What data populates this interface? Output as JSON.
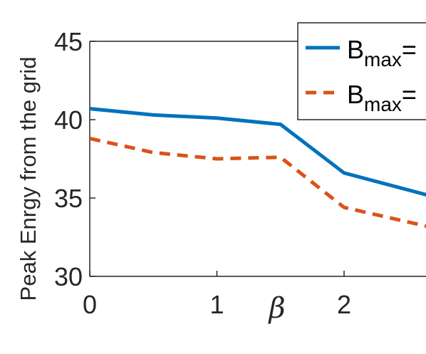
{
  "chart_data": {
    "type": "line",
    "title": "",
    "xlabel": "β",
    "ylabel": "Peak Enrgy from the grid",
    "xlim": [
      0,
      2.65
    ],
    "ylim": [
      30,
      45
    ],
    "xticks": [
      0,
      1,
      2
    ],
    "yticks": [
      30,
      35,
      40,
      45
    ],
    "x_tick_labels": [
      "0",
      "1",
      "2"
    ],
    "y_tick_labels": [
      "30",
      "35",
      "40",
      "45"
    ],
    "grid": false,
    "legend_position": "top-right",
    "series": [
      {
        "name_main": "B",
        "name_sub": "max",
        "name_tail": "=",
        "color": "#0072BD",
        "style": "solid",
        "x": [
          0,
          0.5,
          1,
          1.5,
          2,
          2.65
        ],
        "y": [
          40.7,
          40.3,
          40.1,
          39.7,
          36.6,
          35.2
        ]
      },
      {
        "name_main": "B",
        "name_sub": "max",
        "name_tail": "=",
        "color": "#D95319",
        "style": "dashed",
        "x": [
          0,
          0.5,
          1,
          1.5,
          2,
          2.65
        ],
        "y": [
          38.8,
          37.9,
          37.5,
          37.6,
          34.4,
          33.2
        ]
      }
    ]
  }
}
